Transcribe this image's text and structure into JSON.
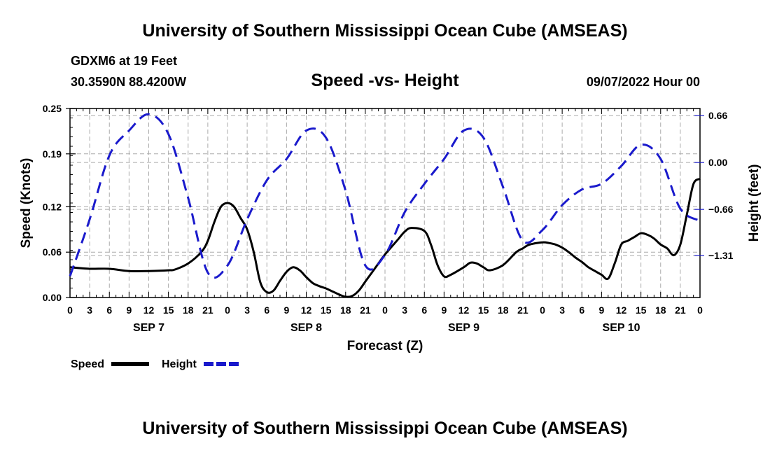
{
  "page": {
    "title_top": "University of Southern Mississippi Ocean Cube (AMSEAS)",
    "title_bottom": "University of Southern Mississippi Ocean Cube (AMSEAS)",
    "station": "GDXM6 at 19 Feet",
    "coords": "30.3590N  88.4200W",
    "subtitle": "Speed -vs- Height",
    "datetime": "09/07/2022 Hour 00"
  },
  "colors": {
    "speed": "#000000",
    "height": "#1a1acc",
    "grid": "#aaaaaa",
    "axis": "#000000"
  },
  "chart_data": {
    "type": "line",
    "xlabel": "Forecast (Z)",
    "ylabel": "Speed (Knots)",
    "y2label": "Height (feet)",
    "xlim": [
      0,
      96
    ],
    "ylim": [
      0,
      0.25
    ],
    "y2lim": [
      -1.9,
      0.76
    ],
    "x_ticks": [
      0,
      3,
      6,
      9,
      12,
      15,
      18,
      21,
      24,
      27,
      30,
      33,
      36,
      39,
      42,
      45,
      48,
      51,
      54,
      57,
      60,
      63,
      66,
      69,
      72,
      75,
      78,
      81,
      84,
      87,
      90,
      93,
      96
    ],
    "x_tick_labels": [
      "0",
      "3",
      "6",
      "9",
      "12",
      "15",
      "18",
      "21",
      "0",
      "3",
      "6",
      "9",
      "12",
      "15",
      "18",
      "21",
      "0",
      "3",
      "6",
      "9",
      "12",
      "15",
      "18",
      "21",
      "0",
      "3",
      "6",
      "9",
      "12",
      "15",
      "18",
      "21",
      "0"
    ],
    "y_ticks": [
      0.0,
      0.06,
      0.12,
      0.19,
      0.25
    ],
    "y_tick_labels": [
      "0.00",
      "0.06",
      "0.12",
      "0.19",
      "0.25"
    ],
    "y2_ticks": [
      0.66,
      0.0,
      -0.66,
      -1.31
    ],
    "y2_tick_labels": [
      "0.66",
      "0.00",
      "−0.66",
      "−1.31"
    ],
    "day_labels": [
      {
        "label": "SEP 7",
        "x": 12
      },
      {
        "label": "SEP 8",
        "x": 36
      },
      {
        "label": "SEP 9",
        "x": 60
      },
      {
        "label": "SEP 10",
        "x": 84
      }
    ],
    "legend": [
      {
        "name": "Speed",
        "style": "solid"
      },
      {
        "name": "Height",
        "style": "dashed"
      }
    ],
    "series": [
      {
        "name": "Speed",
        "axis": "left",
        "x": [
          0,
          3,
          6,
          9,
          12,
          15,
          16,
          18,
          20,
          21,
          22,
          23,
          24,
          25,
          26,
          27,
          28,
          29,
          30,
          31,
          32,
          33,
          34,
          35,
          36,
          37,
          38,
          39,
          40,
          41,
          42,
          43,
          44,
          45,
          46,
          47,
          48,
          50,
          51,
          52,
          54,
          55,
          56,
          57,
          58,
          60,
          61,
          62,
          63,
          64,
          66,
          68,
          69,
          70,
          72,
          73,
          74,
          75,
          76,
          77,
          78,
          79,
          80,
          81,
          82,
          83,
          84,
          85,
          86,
          87,
          88,
          89,
          90,
          91,
          92,
          93,
          94,
          95,
          96
        ],
        "values": [
          0.04,
          0.038,
          0.038,
          0.035,
          0.035,
          0.036,
          0.037,
          0.045,
          0.06,
          0.075,
          0.1,
          0.12,
          0.125,
          0.12,
          0.105,
          0.09,
          0.06,
          0.02,
          0.007,
          0.009,
          0.022,
          0.034,
          0.04,
          0.036,
          0.027,
          0.019,
          0.015,
          0.012,
          0.008,
          0.004,
          0.001,
          0.002,
          0.009,
          0.021,
          0.033,
          0.045,
          0.057,
          0.077,
          0.087,
          0.092,
          0.088,
          0.07,
          0.043,
          0.028,
          0.03,
          0.04,
          0.046,
          0.045,
          0.04,
          0.036,
          0.043,
          0.06,
          0.065,
          0.07,
          0.073,
          0.072,
          0.07,
          0.066,
          0.06,
          0.053,
          0.047,
          0.04,
          0.035,
          0.03,
          0.025,
          0.045,
          0.07,
          0.075,
          0.08,
          0.085,
          0.083,
          0.078,
          0.07,
          0.065,
          0.056,
          0.07,
          0.11,
          0.15,
          0.157
        ]
      },
      {
        "name": "Height",
        "axis": "right",
        "x": [
          0,
          3,
          6,
          9,
          12,
          15,
          18,
          21,
          24,
          27,
          30,
          33,
          36,
          39,
          42,
          45,
          48,
          51,
          54,
          57,
          60,
          63,
          66,
          69,
          72,
          75,
          78,
          81,
          84,
          87,
          90,
          93,
          96
        ],
        "values": [
          -1.6,
          -0.8,
          0.1,
          0.45,
          0.68,
          0.4,
          -0.5,
          -1.55,
          -1.45,
          -0.8,
          -0.25,
          0.05,
          0.45,
          0.35,
          -0.4,
          -1.45,
          -1.3,
          -0.7,
          -0.3,
          0.05,
          0.45,
          0.35,
          -0.35,
          -1.1,
          -0.95,
          -0.6,
          -0.38,
          -0.3,
          -0.05,
          0.25,
          0.05,
          -0.65,
          -0.82
        ]
      }
    ]
  }
}
